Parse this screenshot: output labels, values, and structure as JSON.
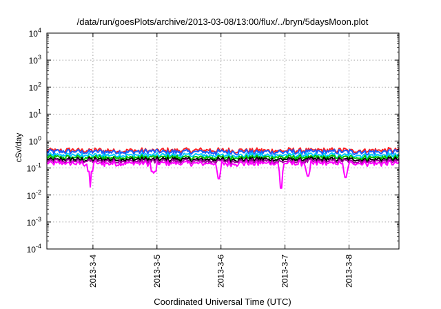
{
  "chart_data": {
    "type": "line",
    "title": "/data/run/goesPlots/archive/2013-03-08/13:00/flux/../bryn/5daysMoon.plot",
    "xlabel": "Coordinated Universal Time (UTC)",
    "ylabel": "cSv/day",
    "yscale": "log",
    "ylim": [
      0.0001,
      10000
    ],
    "xlim": [
      0,
      5.5
    ],
    "x_note": "x in days after the first plotted sample; tick dates shown below",
    "xticks": [
      {
        "x": 0.72,
        "label": "2013-3-4"
      },
      {
        "x": 1.72,
        "label": "2013-3-5"
      },
      {
        "x": 2.72,
        "label": "2013-3-6"
      },
      {
        "x": 3.72,
        "label": "2013-3-7"
      },
      {
        "x": 4.72,
        "label": "2013-3-8"
      }
    ],
    "yticks": [
      {
        "v": 0.0001,
        "base": "10",
        "exp": "-4"
      },
      {
        "v": 0.001,
        "base": "10",
        "exp": "-3"
      },
      {
        "v": 0.01,
        "base": "10",
        "exp": "-2"
      },
      {
        "v": 0.1,
        "base": "10",
        "exp": "-1"
      },
      {
        "v": 1,
        "base": "10",
        "exp": "0"
      },
      {
        "v": 10,
        "base": "10",
        "exp": "1"
      },
      {
        "v": 100,
        "base": "10",
        "exp": "2"
      },
      {
        "v": 1000,
        "base": "10",
        "exp": "3"
      },
      {
        "v": 10000,
        "base": "10",
        "exp": "4"
      }
    ],
    "grid": true,
    "legend": "none",
    "series": [
      {
        "color": "#ff2020",
        "base": 0.45,
        "amp": 0.25,
        "dips": []
      },
      {
        "color": "#1a5cff",
        "base": 0.4,
        "amp": 0.25,
        "dips": []
      },
      {
        "color": "#00c8ff",
        "base": 0.3,
        "amp": 0.22,
        "dips": []
      },
      {
        "color": "#00c000",
        "base": 0.25,
        "amp": 0.2,
        "dips": []
      },
      {
        "color": "#000000",
        "base": 0.21,
        "amp": 0.2,
        "dips": []
      },
      {
        "color": "#a000a0",
        "base": 0.18,
        "amp": 0.22,
        "dips": []
      },
      {
        "color": "#ff00ff",
        "base": 0.15,
        "amp": 0.25,
        "dips": [
          {
            "x": 0.68,
            "y": 0.02
          },
          {
            "x": 1.67,
            "y": 0.065
          },
          {
            "x": 2.68,
            "y": 0.04
          },
          {
            "x": 3.66,
            "y": 0.018
          },
          {
            "x": 4.08,
            "y": 0.05
          },
          {
            "x": 4.67,
            "y": 0.045
          }
        ]
      }
    ]
  }
}
